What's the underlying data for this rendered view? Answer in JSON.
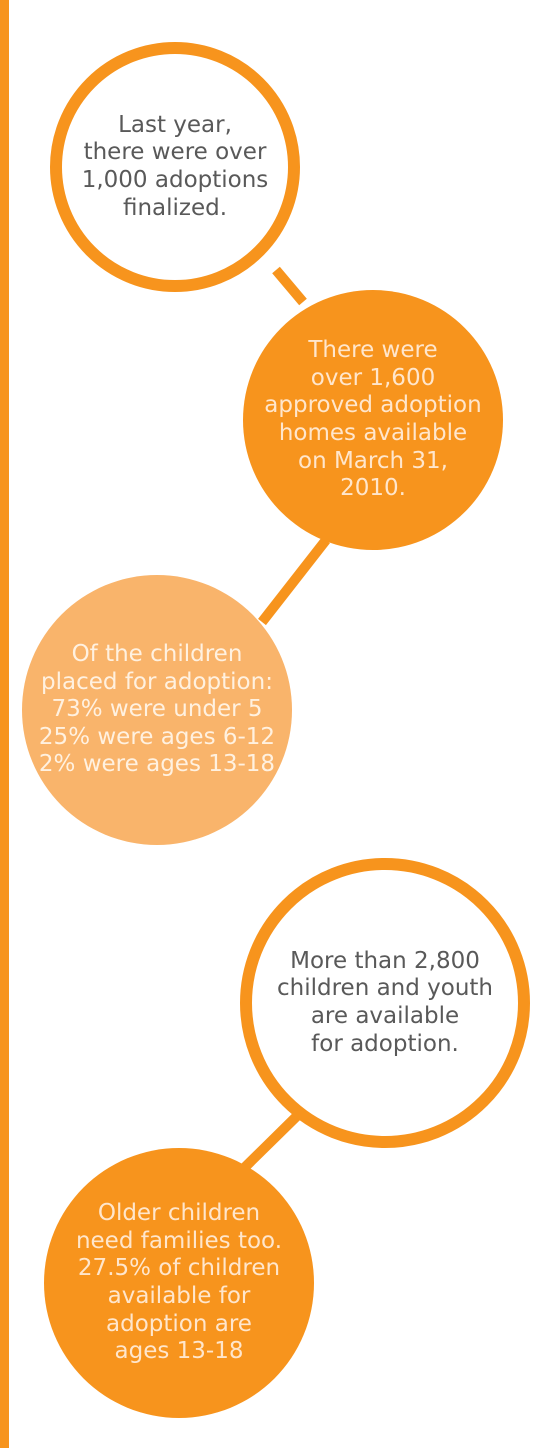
{
  "colors": {
    "accent": "#f7941d",
    "light_accent": "#f9b46b",
    "text_dark": "#595959",
    "text_light": "#ffe6cc"
  },
  "bubbles": [
    {
      "text": "Last year,\nthere were over\n1,000 adoptions\nfinalized."
    },
    {
      "text": "There were\nover 1,600\napproved adoption\nhomes available\non March 31,\n2010."
    },
    {
      "text": "Of the children\nplaced for adoption:\n73% were under 5\n25% were ages 6-12\n2% were ages 13-18"
    },
    {
      "text": "More than 2,800\nchildren and youth\nare available\nfor adoption."
    },
    {
      "text": "Older children\nneed families too.\n27.5% of children\navailable for\nadoption are\nages 13-18"
    }
  ]
}
